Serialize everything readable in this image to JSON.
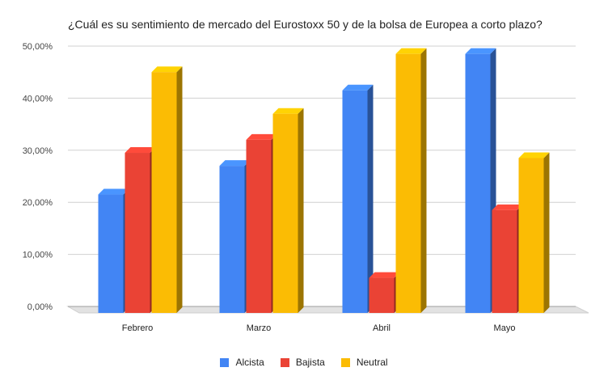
{
  "chart_data": {
    "type": "bar",
    "title": "¿Cuál es su sentimiento de mercado del Eurostoxx 50 y de la bolsa de Europea a corto plazo?",
    "xlabel": "",
    "ylabel": "",
    "categories": [
      "Febrero",
      "Marzo",
      "Abril",
      "Mayo"
    ],
    "series": [
      {
        "name": "Alcista",
        "color": "#4285f4",
        "values": [
          21.5,
          27.0,
          41.5,
          48.5
        ]
      },
      {
        "name": "Bajista",
        "color": "#ea4335",
        "values": [
          29.5,
          32.0,
          5.5,
          18.5
        ]
      },
      {
        "name": "Neutral",
        "color": "#fbbc04",
        "values": [
          45.0,
          37.0,
          48.5,
          28.5
        ]
      }
    ],
    "ylim": [
      0,
      50
    ],
    "yticks": [
      "0,00%",
      "10,00%",
      "20,00%",
      "30,00%",
      "40,00%",
      "50,00%"
    ],
    "grid": true,
    "legend_position": "bottom"
  }
}
